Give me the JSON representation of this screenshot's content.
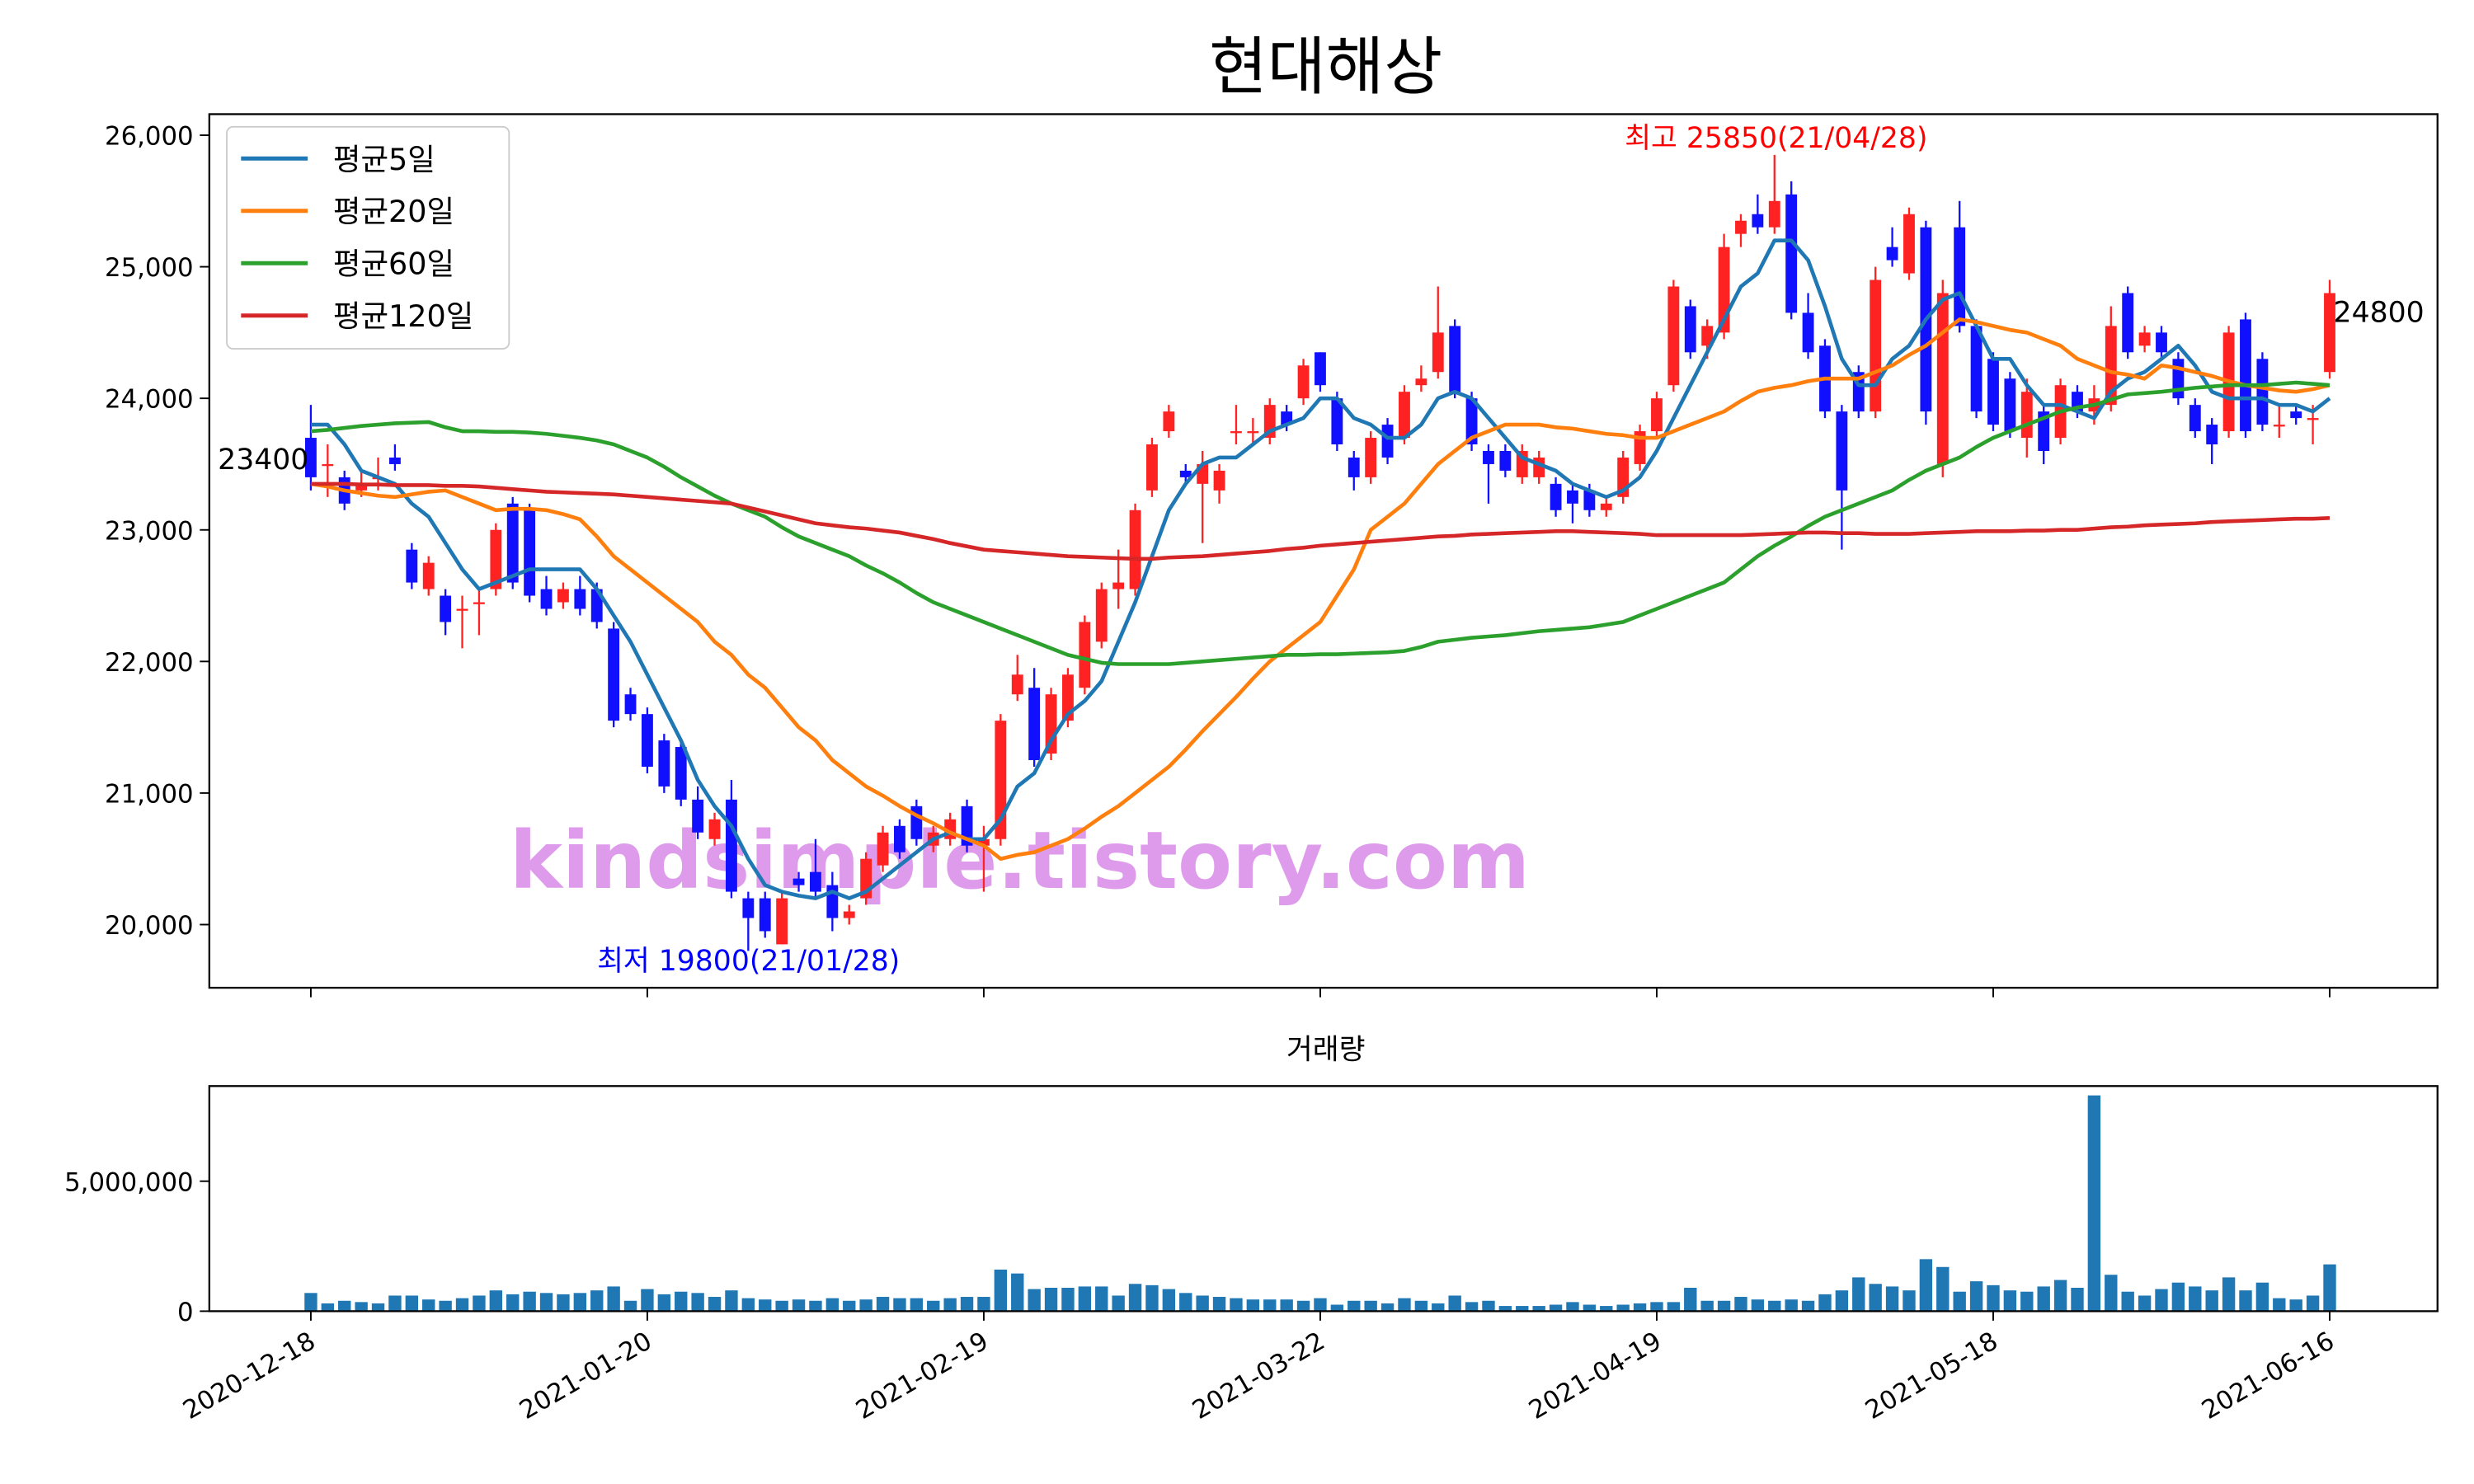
{
  "chart_data": {
    "type": "candlestick",
    "title": "현대해상",
    "categories": [
      "2020-12-18",
      null,
      null,
      null,
      null,
      null,
      null,
      null,
      null,
      null,
      null,
      null,
      null,
      null,
      null,
      null,
      null,
      null,
      null,
      null,
      "2021-01-20",
      null,
      null,
      null,
      null,
      null,
      null,
      null,
      null,
      null,
      null,
      null,
      null,
      null,
      null,
      null,
      null,
      null,
      null,
      null,
      "2021-02-19",
      null,
      null,
      null,
      null,
      null,
      null,
      null,
      null,
      null,
      null,
      null,
      null,
      null,
      null,
      null,
      null,
      null,
      null,
      null,
      "2021-03-22",
      null,
      null,
      null,
      null,
      null,
      null,
      null,
      null,
      null,
      null,
      null,
      null,
      null,
      null,
      null,
      null,
      null,
      null,
      null,
      "2021-04-19",
      null,
      null,
      null,
      null,
      null,
      null,
      null,
      null,
      null,
      null,
      null,
      null,
      null,
      null,
      null,
      null,
      null,
      null,
      null,
      "2021-05-18",
      null,
      null,
      null,
      null,
      null,
      null,
      null,
      null,
      null,
      null,
      null,
      null,
      null,
      null,
      null,
      null,
      null,
      null,
      null,
      "2021-06-16"
    ],
    "open": [
      23700,
      23500,
      23400,
      23300,
      23400,
      23550,
      22850,
      22550,
      22500,
      22400,
      22450,
      22550,
      23200,
      23150,
      22550,
      22450,
      22550,
      22550,
      22250,
      21750,
      21600,
      21400,
      21350,
      20950,
      20650,
      20950,
      20200,
      20200,
      19850,
      20350,
      20400,
      20300,
      20050,
      20200,
      20450,
      20750,
      20900,
      20600,
      20650,
      20900,
      20600,
      20650,
      21750,
      21800,
      21300,
      21550,
      21800,
      22150,
      22550,
      22550,
      23300,
      23750,
      23450,
      23350,
      23300,
      23750,
      23750,
      23700,
      23900,
      24000,
      24350,
      24000,
      23550,
      23400,
      23800,
      23700,
      24100,
      24200,
      24550,
      24000,
      23600,
      23600,
      23400,
      23400,
      23350,
      23300,
      23300,
      23150,
      23250,
      23500,
      23750,
      24100,
      24700,
      24400,
      24500,
      25250,
      25400,
      25300,
      25550,
      24650,
      24400,
      23900,
      24200,
      23900,
      25150,
      24950,
      25300,
      23500,
      25300,
      24550,
      24300,
      24150,
      23700,
      23900,
      23700,
      24050,
      23900,
      23950,
      24800,
      24400,
      24500,
      24300,
      23950,
      23800,
      23750,
      24600,
      24300,
      23800,
      23900,
      23850,
      24200
    ],
    "high": [
      23950,
      23650,
      23450,
      23450,
      23550,
      23650,
      22900,
      22800,
      22550,
      22500,
      22550,
      23050,
      23250,
      23200,
      22650,
      22600,
      22650,
      22600,
      22300,
      21800,
      21650,
      21450,
      21400,
      21050,
      20850,
      21100,
      20250,
      20250,
      20250,
      20400,
      20650,
      20400,
      20150,
      20550,
      20750,
      20800,
      20950,
      20750,
      20850,
      20950,
      20750,
      21600,
      22050,
      21950,
      21800,
      21950,
      22350,
      22600,
      22850,
      23200,
      23700,
      23950,
      23500,
      23600,
      23500,
      23950,
      23850,
      24000,
      23950,
      24300,
      24350,
      24050,
      23600,
      23750,
      23850,
      24100,
      24250,
      24850,
      24600,
      24050,
      23650,
      23650,
      23650,
      23600,
      23400,
      23350,
      23350,
      23250,
      23600,
      23800,
      24050,
      24900,
      24750,
      24600,
      25250,
      25400,
      25550,
      25850,
      25650,
      24800,
      24450,
      23950,
      24250,
      25000,
      25300,
      25450,
      25350,
      24900,
      25500,
      24600,
      24350,
      24200,
      24150,
      23950,
      24150,
      24100,
      24100,
      24700,
      24850,
      24550,
      24550,
      24350,
      24000,
      23850,
      24550,
      24650,
      24350,
      23950,
      23950,
      23950,
      24900
    ],
    "low": [
      23300,
      23250,
      23150,
      23250,
      23300,
      23450,
      22550,
      22500,
      22200,
      22100,
      22200,
      22500,
      22550,
      22450,
      22350,
      22400,
      22350,
      22250,
      21500,
      21550,
      21150,
      21000,
      20900,
      20650,
      20600,
      20200,
      19800,
      19900,
      19850,
      20250,
      20200,
      19950,
      20000,
      20150,
      20400,
      20500,
      20600,
      20550,
      20600,
      20550,
      20250,
      20600,
      21700,
      21200,
      21250,
      21500,
      21750,
      22100,
      22400,
      22500,
      23250,
      23700,
      23350,
      22900,
      23200,
      23650,
      23650,
      23650,
      23750,
      23950,
      24050,
      23600,
      23300,
      23350,
      23500,
      23650,
      24050,
      24150,
      24000,
      23600,
      23200,
      23400,
      23350,
      23350,
      23100,
      23050,
      23100,
      23100,
      23200,
      23450,
      23700,
      24050,
      24300,
      24300,
      24450,
      25150,
      25250,
      25250,
      24600,
      24300,
      23850,
      22850,
      23850,
      23850,
      25000,
      24900,
      23800,
      23400,
      24500,
      23850,
      23750,
      23700,
      23550,
      23500,
      23650,
      23850,
      23800,
      23900,
      24300,
      24350,
      24300,
      23950,
      23700,
      23500,
      23700,
      23700,
      23750,
      23700,
      23800,
      23650,
      24150
    ],
    "close": [
      23400,
      23500,
      23200,
      23350,
      23400,
      23500,
      22600,
      22750,
      22300,
      22400,
      22450,
      23000,
      22600,
      22500,
      22400,
      22550,
      22400,
      22300,
      21550,
      21600,
      21200,
      21050,
      20950,
      20700,
      20800,
      20250,
      20050,
      19950,
      20200,
      20300,
      20250,
      20050,
      20100,
      20500,
      20700,
      20550,
      20650,
      20700,
      20800,
      20600,
      20650,
      21550,
      21900,
      21250,
      21750,
      21900,
      22300,
      22550,
      22600,
      23150,
      23650,
      23900,
      23400,
      23500,
      23450,
      23750,
      23750,
      23950,
      23800,
      24250,
      24100,
      23650,
      23400,
      23700,
      23550,
      24050,
      24150,
      24500,
      24050,
      23650,
      23500,
      23450,
      23600,
      23550,
      23150,
      23200,
      23150,
      23200,
      23550,
      23750,
      24000,
      24850,
      24350,
      24550,
      25150,
      25350,
      25300,
      25500,
      24650,
      24350,
      23900,
      23300,
      23900,
      24900,
      25050,
      25400,
      23900,
      24800,
      24550,
      23900,
      23800,
      23750,
      24050,
      23600,
      24100,
      23900,
      24000,
      24550,
      24350,
      24500,
      24350,
      24000,
      23750,
      23650,
      24500,
      23750,
      23800,
      23800,
      23850,
      23850,
      24800
    ],
    "up_color": "#ff2222",
    "down_color": "#1010ff",
    "ylim": [
      19520,
      26160
    ],
    "yticks": [
      {
        "value": 20000,
        "label": "20,000"
      },
      {
        "value": 21000,
        "label": "21,000"
      },
      {
        "value": 22000,
        "label": "22,000"
      },
      {
        "value": 23000,
        "label": "23,000"
      },
      {
        "value": 24000,
        "label": "24,000"
      },
      {
        "value": 25000,
        "label": "25,000"
      },
      {
        "value": 26000,
        "label": "26,000"
      }
    ],
    "legend": "upper left",
    "series": [
      {
        "name": "평균5일",
        "color": "#1f77b4",
        "values": [
          23800,
          23800,
          23650,
          23450,
          23400,
          23350,
          23200,
          23100,
          22900,
          22700,
          22550,
          22600,
          22650,
          22700,
          22700,
          22700,
          22700,
          22550,
          22350,
          22150,
          21900,
          21650,
          21400,
          21100,
          20900,
          20750,
          20500,
          20300,
          20250,
          20220,
          20200,
          20250,
          20200,
          20250,
          20350,
          20450,
          20550,
          20650,
          20700,
          20650,
          20650,
          20800,
          21050,
          21150,
          21400,
          21600,
          21700,
          21850,
          22150,
          22450,
          22800,
          23150,
          23350,
          23500,
          23550,
          23550,
          23650,
          23750,
          23800,
          23850,
          24000,
          24000,
          23850,
          23800,
          23700,
          23700,
          23800,
          24000,
          24050,
          24000,
          23850,
          23700,
          23550,
          23500,
          23450,
          23350,
          23300,
          23250,
          23300,
          23400,
          23600,
          23850,
          24100,
          24350,
          24600,
          24850,
          24950,
          25200,
          25200,
          25050,
          24700,
          24300,
          24100,
          24100,
          24300,
          24400,
          24600,
          24750,
          24800,
          24550,
          24300,
          24300,
          24100,
          23950,
          23950,
          23900,
          23850,
          24050,
          24150,
          24200,
          24300,
          24400,
          24250,
          24050,
          24000,
          24000,
          24000,
          23950,
          23950,
          23900,
          24000
        ]
      },
      {
        "name": "평균20일",
        "color": "#ff7f0e",
        "values": [
          23350,
          23330,
          23300,
          23280,
          23260,
          23250,
          23270,
          23290,
          23300,
          23250,
          23200,
          23150,
          23160,
          23160,
          23150,
          23120,
          23080,
          22950,
          22800,
          22700,
          22600,
          22500,
          22400,
          22300,
          22150,
          22050,
          21900,
          21800,
          21650,
          21500,
          21400,
          21250,
          21150,
          21050,
          20980,
          20900,
          20830,
          20770,
          20700,
          20650,
          20600,
          20500,
          20530,
          20550,
          20600,
          20650,
          20730,
          20820,
          20900,
          21000,
          21100,
          21200,
          21330,
          21470,
          21600,
          21730,
          21870,
          22000,
          22100,
          22200,
          22300,
          22500,
          22700,
          23000,
          23100,
          23200,
          23350,
          23500,
          23600,
          23700,
          23750,
          23800,
          23800,
          23800,
          23780,
          23770,
          23750,
          23730,
          23720,
          23700,
          23700,
          23750,
          23800,
          23850,
          23900,
          23980,
          24050,
          24080,
          24100,
          24130,
          24150,
          24150,
          24150,
          24200,
          24250,
          24330,
          24400,
          24500,
          24600,
          24580,
          24550,
          24520,
          24500,
          24450,
          24400,
          24300,
          24250,
          24200,
          24180,
          24150,
          24250,
          24230,
          24200,
          24170,
          24130,
          24100,
          24080,
          24060,
          24050,
          24070,
          24100
        ]
      },
      {
        "name": "평균60일",
        "color": "#2ca02c",
        "values": [
          23750,
          23760,
          23775,
          23790,
          23800,
          23810,
          23815,
          23820,
          23780,
          23750,
          23750,
          23745,
          23745,
          23740,
          23730,
          23715,
          23700,
          23680,
          23650,
          23600,
          23550,
          23480,
          23400,
          23330,
          23260,
          23200,
          23150,
          23100,
          23020,
          22950,
          22900,
          22850,
          22800,
          22730,
          22670,
          22600,
          22520,
          22450,
          22400,
          22350,
          22300,
          22250,
          22200,
          22150,
          22100,
          22050,
          22020,
          21990,
          21980,
          21980,
          21980,
          21980,
          21990,
          22000,
          22010,
          22020,
          22030,
          22040,
          22050,
          22050,
          22055,
          22055,
          22060,
          22065,
          22070,
          22080,
          22110,
          22150,
          22165,
          22180,
          22190,
          22200,
          22215,
          22230,
          22240,
          22250,
          22260,
          22280,
          22300,
          22350,
          22400,
          22450,
          22500,
          22550,
          22600,
          22700,
          22800,
          22880,
          22950,
          23030,
          23100,
          23150,
          23200,
          23250,
          23300,
          23380,
          23450,
          23500,
          23550,
          23630,
          23700,
          23750,
          23800,
          23850,
          23900,
          23930,
          23950,
          23990,
          24030,
          24040,
          24050,
          24065,
          24080,
          24090,
          24100,
          24100,
          24100,
          24110,
          24120,
          24110,
          24100
        ]
      },
      {
        "name": "평균120일",
        "color": "#d62728",
        "values": [
          23350,
          23350,
          23350,
          23345,
          23345,
          23340,
          23340,
          23340,
          23335,
          23335,
          23330,
          23320,
          23310,
          23300,
          23290,
          23285,
          23280,
          23275,
          23270,
          23260,
          23250,
          23240,
          23230,
          23220,
          23210,
          23200,
          23170,
          23140,
          23110,
          23080,
          23050,
          23035,
          23020,
          23010,
          22995,
          22980,
          22955,
          22930,
          22900,
          22875,
          22850,
          22840,
          22830,
          22820,
          22810,
          22800,
          22795,
          22790,
          22785,
          22780,
          22780,
          22790,
          22795,
          22800,
          22810,
          22820,
          22830,
          22840,
          22855,
          22865,
          22880,
          22890,
          22900,
          22910,
          22920,
          22930,
          22940,
          22950,
          22955,
          22965,
          22970,
          22975,
          22980,
          22985,
          22990,
          22990,
          22985,
          22980,
          22975,
          22970,
          22960,
          22960,
          22960,
          22960,
          22960,
          22960,
          22965,
          22970,
          22975,
          22980,
          22980,
          22975,
          22975,
          22970,
          22970,
          22970,
          22975,
          22980,
          22985,
          22990,
          22990,
          22990,
          22995,
          22995,
          23000,
          23000,
          23010,
          23020,
          23025,
          23035,
          23040,
          23045,
          23050,
          23060,
          23065,
          23070,
          23075,
          23080,
          23085,
          23085,
          23090
        ]
      }
    ],
    "high_label": "최고 25850(21/04/28)",
    "high_color": "#ff0000",
    "low_label": "최저 19800(21/01/28)",
    "low_color": "#0000ff",
    "first_label": "23400",
    "last_label": "24800",
    "watermark": "kindsimple.tistory.com",
    "watermark_color": "#d98ae8",
    "volume": {
      "title": "거래량",
      "color": "#1f77b4",
      "ylim": [
        0,
        8660000
      ],
      "yticks": [
        0,
        {
          "value": 5000000,
          "label": "5,000,000"
        }
      ],
      "values": [
        700000,
        300000,
        400000,
        350000,
        300000,
        600000,
        600000,
        450000,
        400000,
        500000,
        600000,
        800000,
        650000,
        750000,
        700000,
        650000,
        700000,
        800000,
        950000,
        400000,
        850000,
        650000,
        750000,
        700000,
        550000,
        800000,
        500000,
        450000,
        400000,
        450000,
        400000,
        500000,
        400000,
        450000,
        550000,
        500000,
        500000,
        400000,
        500000,
        550000,
        550000,
        1600000,
        1450000,
        850000,
        900000,
        900000,
        950000,
        950000,
        600000,
        1050000,
        1000000,
        850000,
        700000,
        600000,
        550000,
        500000,
        450000,
        450000,
        450000,
        400000,
        500000,
        250000,
        400000,
        400000,
        300000,
        500000,
        400000,
        300000,
        600000,
        350000,
        400000,
        200000,
        200000,
        200000,
        250000,
        350000,
        250000,
        200000,
        250000,
        300000,
        350000,
        350000,
        900000,
        400000,
        400000,
        550000,
        450000,
        400000,
        450000,
        400000,
        650000,
        800000,
        1300000,
        1050000,
        950000,
        800000,
        2000000,
        1700000,
        750000,
        1150000,
        1000000,
        800000,
        750000,
        950000,
        1200000,
        900000,
        8300000,
        1400000,
        750000,
        600000,
        850000,
        1100000,
        950000,
        800000,
        1300000,
        800000,
        1100000,
        500000,
        450000,
        600000,
        1800000
      ]
    }
  }
}
